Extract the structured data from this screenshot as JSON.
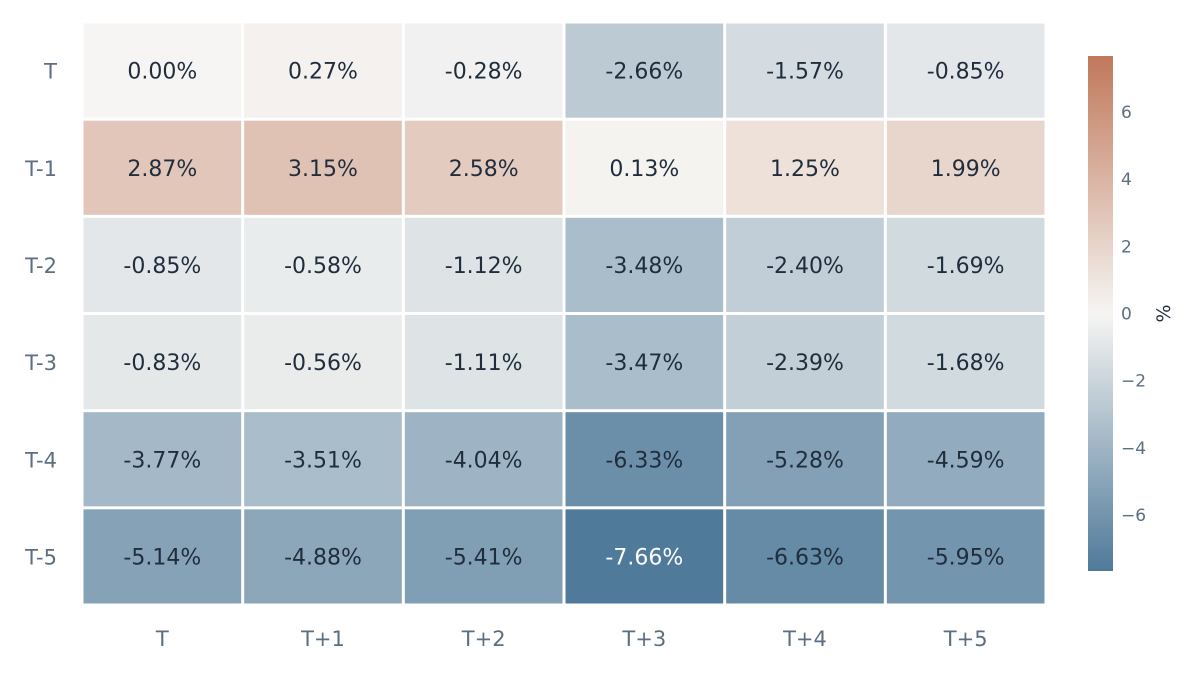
{
  "chart_data": {
    "type": "heatmap",
    "title": "",
    "xlabel": "",
    "ylabel": "",
    "x_categories": [
      "T",
      "T+1",
      "T+2",
      "T+3",
      "T+4",
      "T+5"
    ],
    "y_categories": [
      "T",
      "T-1",
      "T-2",
      "T-3",
      "T-4",
      "T-5"
    ],
    "values": [
      [
        0.0,
        0.27,
        -0.28,
        -2.66,
        -1.57,
        -0.85
      ],
      [
        2.87,
        3.15,
        2.58,
        0.13,
        1.25,
        1.99
      ],
      [
        -0.85,
        -0.58,
        -1.12,
        -3.48,
        -2.4,
        -1.69
      ],
      [
        -0.83,
        -0.56,
        -1.11,
        -3.47,
        -2.39,
        -1.68
      ],
      [
        -3.77,
        -3.51,
        -4.04,
        -6.33,
        -5.28,
        -4.59
      ],
      [
        -5.14,
        -4.88,
        -5.41,
        -7.66,
        -6.63,
        -5.95
      ]
    ],
    "cell_labels": [
      [
        "0.00%",
        "0.27%",
        "-0.28%",
        "-2.66%",
        "-1.57%",
        "-0.85%"
      ],
      [
        "2.87%",
        "3.15%",
        "2.58%",
        "0.13%",
        "1.25%",
        "1.99%"
      ],
      [
        "-0.85%",
        "-0.58%",
        "-1.12%",
        "-3.48%",
        "-2.40%",
        "-1.69%"
      ],
      [
        "-0.83%",
        "-0.56%",
        "-1.11%",
        "-3.47%",
        "-2.39%",
        "-1.68%"
      ],
      [
        "-3.77%",
        "-3.51%",
        "-4.04%",
        "-6.33%",
        "-5.28%",
        "-4.59%"
      ],
      [
        "-5.14%",
        "-4.88%",
        "-5.41%",
        "-7.66%",
        "-6.63%",
        "-5.95%"
      ]
    ],
    "colorbar": {
      "title": "%",
      "range": [
        -7.66,
        7.66
      ],
      "ticks": [
        -6,
        -4,
        -2,
        0,
        2,
        4,
        6
      ],
      "tick_labels": [
        "−6",
        "−4",
        "−2",
        "0",
        "2",
        "4",
        "6"
      ]
    },
    "colors": {
      "negative": "#4f7a9a",
      "neutral": "#f6f5f3",
      "positive": "#c0785a",
      "text_dark": "#1f2d3d",
      "text_light": "#ffffff",
      "axis_text": "#5c6e82"
    },
    "grid": false
  }
}
